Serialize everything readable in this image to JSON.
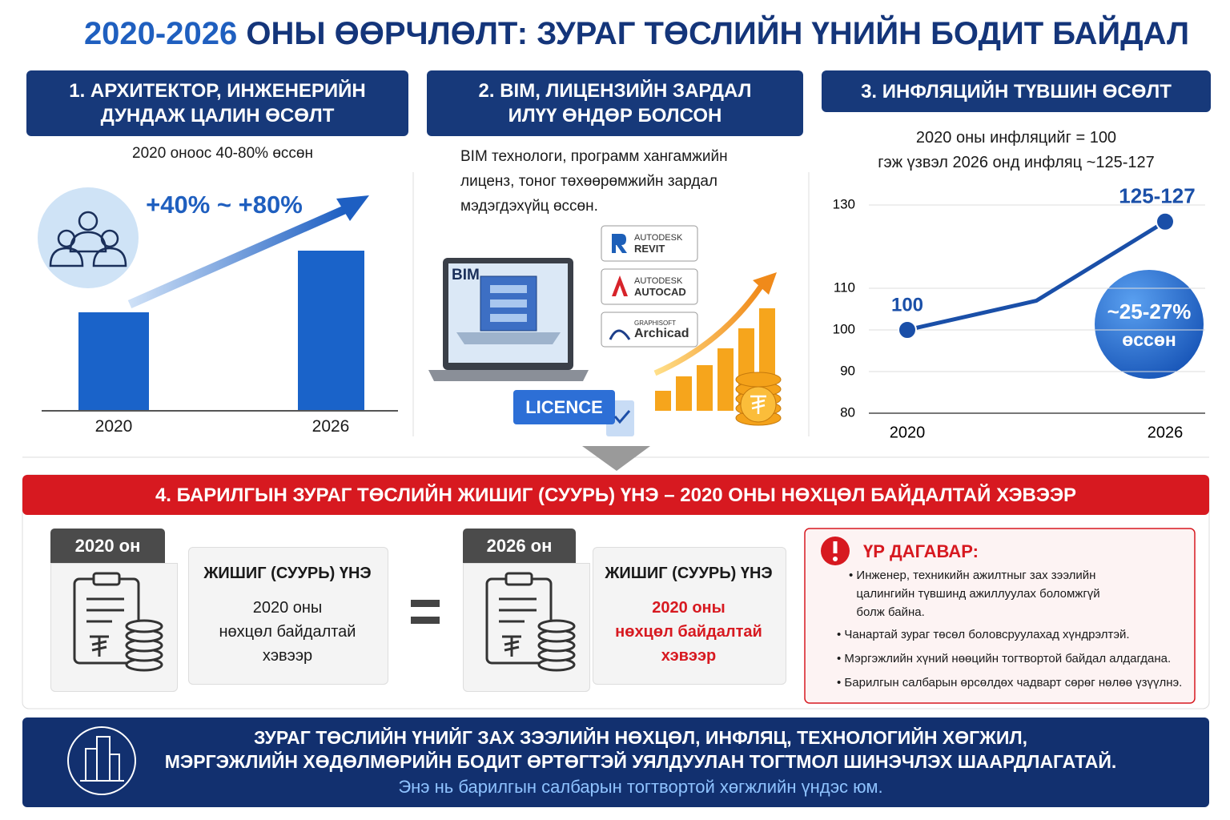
{
  "title": {
    "year": "2020-2026",
    "rest": "ОНЫ ӨӨРЧЛӨЛТ: ЗУРАГ ТӨСЛИЙН ҮНИЙН БОДИТ БАЙДАЛ"
  },
  "panel1": {
    "heading": [
      "1. АРХИТЕКТОР, ИНЖЕНЕРИЙН",
      "ДУНДАЖ ЦАЛИН ӨСӨЛТ"
    ],
    "subtitle": "2020 оноос 40-80% өссөн",
    "callout": "+40% ~ +80%",
    "years": [
      "2020",
      "2026"
    ]
  },
  "panel2": {
    "heading": [
      "2. BIM, ЛИЦЕНЗИЙН ЗАРДАЛ",
      "ИЛҮҮ ӨНДӨР БОЛСОН"
    ],
    "description": [
      "BIM технологи, программ хангамжийн",
      "лиценз, тоног төхөөрөмжийн зардал",
      "мэдэгдэхүйц өссөн."
    ],
    "laptop_label": "BIM",
    "logos": [
      [
        "AUTODESK",
        "REVIT"
      ],
      [
        "AUTODESK",
        "AUTOCAD"
      ],
      [
        "GRAPHISOFT",
        "Archicad"
      ]
    ],
    "licence": "LICENCE"
  },
  "panel3": {
    "heading": "3. ИНФЛЯЦИЙН ТҮВШИН ӨСӨЛТ",
    "subtitle": [
      "2020 оны инфляцийг = 100",
      "гэж үзвэл 2026 онд инфляц ~125-127"
    ],
    "chart": {
      "type": "line",
      "categories": [
        "2020",
        null,
        "2026"
      ],
      "values": [
        100,
        107,
        126
      ],
      "value_labels": [
        "100",
        null,
        "125-127"
      ],
      "color": "#1a4fa8",
      "ylim": [
        80,
        130
      ],
      "yticks": [
        80,
        90,
        100,
        110,
        130
      ],
      "grid": true
    },
    "badge": [
      "~25-27%",
      "өссөн"
    ]
  },
  "section4": {
    "banner": "4. БАРИЛГЫН ЗУРАГ ТӨСЛИЙН ЖИШИГ (СУУРЬ) ҮНЭ – 2020 ОНЫ НӨХЦӨЛ БАЙДАЛТАЙ ХЭВЭЭР",
    "cards": [
      {
        "tag": "2020 он",
        "title": "ЖИШИГ (СУУРЬ) ҮНЭ",
        "lines": [
          "2020 оны",
          "нөхцөл байдалтай",
          "хэвээр"
        ]
      },
      {
        "tag": "2026 он",
        "title": "ЖИШИГ (СУУРЬ) ҮНЭ",
        "lines": [
          "2020 оны",
          "нөхцөл байдалтай",
          "хэвээр"
        ]
      }
    ],
    "consequence": {
      "title": "ҮР ДАГАВАР:",
      "bullets": [
        [
          "Инженер, техникийн ажилтныг зах зээлийн",
          "цалингийн түвшинд ажиллуулах боломжгүй",
          "болж байна."
        ],
        [
          "Чанартай зураг төсөл боловсруулахад хүндрэлтэй."
        ],
        [
          "Мэргэжлийн хүний нөөцийн тогтвортой байдал алдагдана."
        ],
        [
          "Барилгын салбарын өрсөлдөх чадварт сөрөг нөлөө үзүүлнэ."
        ]
      ]
    }
  },
  "footer": {
    "lines": [
      "ЗУРАГ ТӨСЛИЙН ҮНИЙГ ЗАХ ЗЭЭЛИЙН НӨХЦӨЛ, ИНФЛЯЦ, ТЕХНОЛОГИЙН ХӨГЖИЛ,",
      "МЭРГЭЖЛИЙН ХӨДӨЛМӨРИЙН БОДИТ ӨРТӨГТЭЙ УЯЛДУУЛАН ТОГТМОЛ ШИНЭЧЛЭХ ШААРДЛАГАТАЙ."
    ],
    "note": "Энэ нь барилгын салбарын тогтвортой хөгжлийн үндэс юм."
  }
}
